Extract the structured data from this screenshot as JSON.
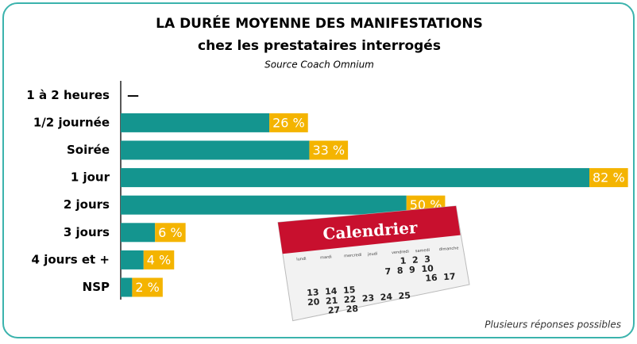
{
  "chart_data": {
    "type": "hbar",
    "title": "LA DURÉE MOYENNE DES MANIFESTATIONS",
    "subtitle": "chez les prestataires interrogés",
    "source": "Source Coach Omnium",
    "note": "Plusieurs réponses possibles",
    "categories": [
      "1 à 2 heures",
      "1/2 journée",
      "Soirée",
      "1 jour",
      "2 jours",
      "3 jours",
      "4 jours et +",
      "NSP"
    ],
    "values": [
      null,
      26,
      33,
      82,
      50,
      6,
      4,
      2
    ],
    "value_labels": [
      "—",
      "26 %",
      "33 %",
      "82 %",
      "50 %",
      "6 %",
      "4 %",
      "2 %"
    ],
    "color": "#14958f",
    "label_color": "#f4b400"
  },
  "calendar": {
    "title": "Calendrier",
    "weekdays": [
      "lundi",
      "mardi",
      "mercredi",
      "jeudi",
      "vendredi",
      "samedi",
      "dimanche"
    ],
    "rows": [
      "1  2  3",
      "7  8  9  10",
      "16  17",
      "13  14  15",
      "20  21  22  23  24  25",
      "27  28"
    ]
  }
}
